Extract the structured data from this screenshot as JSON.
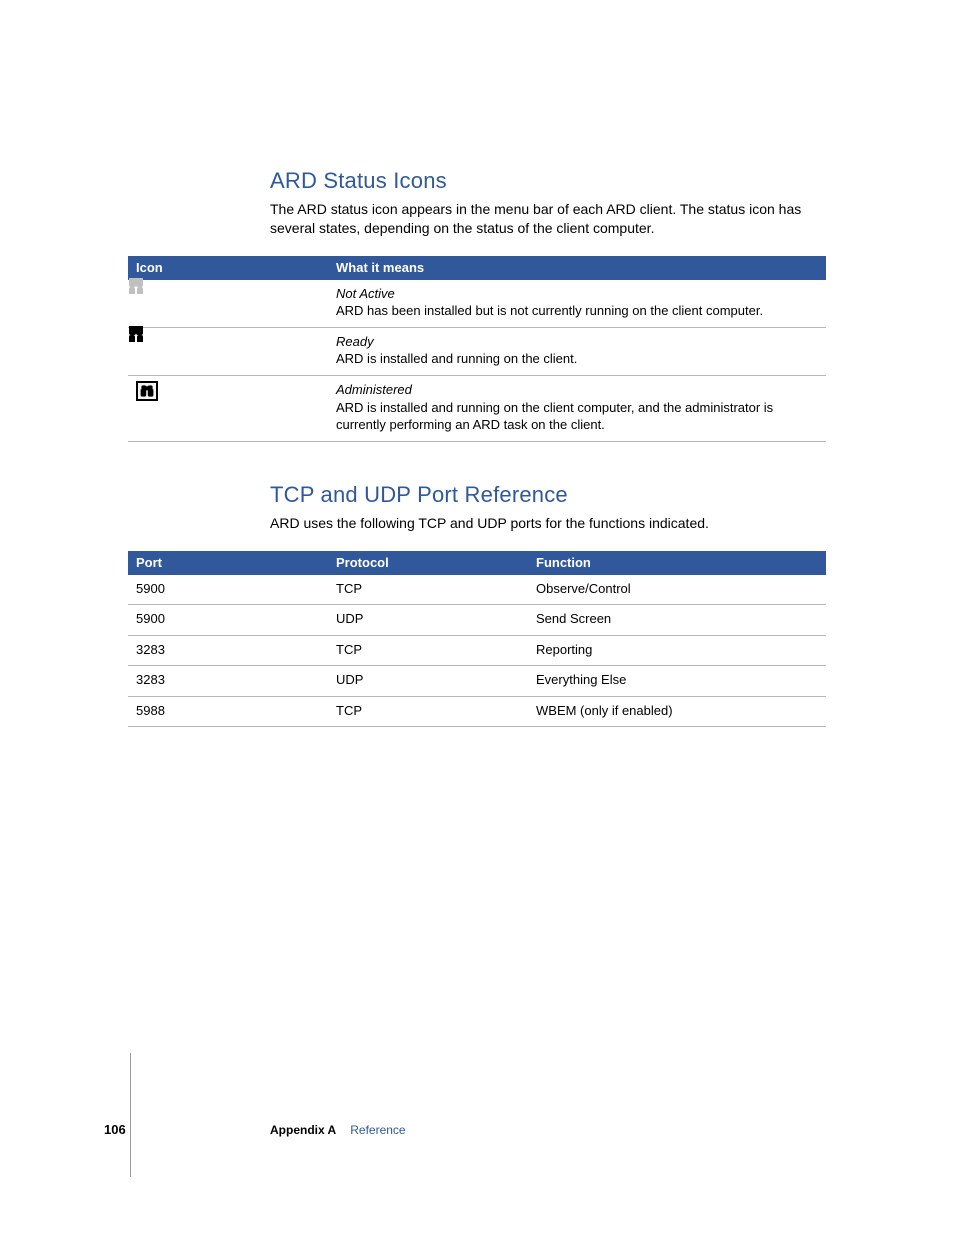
{
  "colors": {
    "heading": "#30589a",
    "table_header_bg": "#30589a",
    "table_header_text": "#ffffff",
    "row_border": "#b8b8b8",
    "body_text": "#000000",
    "link": "#30589a",
    "icon_grey": "#c0c0c0",
    "icon_black": "#000000",
    "background": "#ffffff"
  },
  "typography": {
    "heading_fontsize": 22,
    "body_fontsize": 14,
    "table_fontsize": 13,
    "footer_fontsize": 12
  },
  "section1": {
    "heading": "ARD Status Icons",
    "body": "The ARD status icon appears in the menu bar of each ARD client. The status icon has several states, depending on the status of the client computer.",
    "table": {
      "type": "table",
      "columns": [
        "Icon",
        "What it means"
      ],
      "column_widths": [
        "200px",
        "auto"
      ],
      "rows": [
        {
          "icon": "binoculars-grey",
          "status": "Not Active",
          "desc": "ARD has been installed but is not currently running on the client computer."
        },
        {
          "icon": "binoculars-black",
          "status": "Ready",
          "desc": "ARD is installed and running on the client."
        },
        {
          "icon": "binoculars-boxed",
          "status": "Administered",
          "desc": "ARD is installed and running on the client computer, and the administrator is currently performing an ARD task on the client."
        }
      ]
    }
  },
  "section2": {
    "heading": "TCP and UDP Port Reference",
    "body": "ARD uses the following TCP and UDP ports for the functions indicated.",
    "table": {
      "type": "table",
      "columns": [
        "Port",
        "Protocol",
        "Function"
      ],
      "column_widths": [
        "200px",
        "200px",
        "auto"
      ],
      "rows": [
        {
          "port": "5900",
          "protocol": "TCP",
          "function": "Observe/Control"
        },
        {
          "port": "5900",
          "protocol": "UDP",
          "function": "Send Screen"
        },
        {
          "port": "3283",
          "protocol": "TCP",
          "function": "Reporting"
        },
        {
          "port": "3283",
          "protocol": "UDP",
          "function": "Everything Else"
        },
        {
          "port": "5988",
          "protocol": "TCP",
          "function": "WBEM (only if enabled)"
        }
      ]
    }
  },
  "footer": {
    "page_number": "106",
    "appendix_label": "Appendix A",
    "appendix_title": "Reference"
  }
}
